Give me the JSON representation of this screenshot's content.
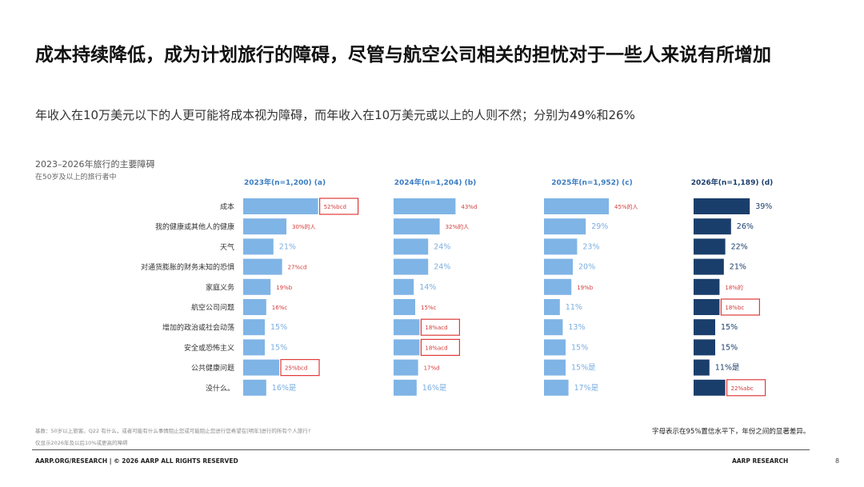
{
  "page": {
    "title": "成本持续降低，成为计划旅行的障碍，尽管与航空公司相关的担忧对于一些人来说有所增加",
    "subtitle": "年收入在10万美元以下的人更可能将成本视为障碍，而年收入在10万美元或以上的人则不然；分别为49%和26%",
    "chart_title": "2023–2026年旅行的主要障碍",
    "chart_subtitle": "在50岁及以上的旅行者中",
    "footnote_base": "基数：50岁以上旅客。Q22 有什么，或者可能有什么事情阻止您或可能阻止您进行您希望在[明年]进行的所有个人旅行?",
    "footnote_2": "仅显示2026年及以后10%或更高的障碍",
    "significance_note": "字母表示在95%置信水平下，年份之间的显著差异。",
    "footer_left": "AARP.ORG/RESEARCH | © 2026 AARP ALL RIGHTS RESERVED",
    "footer_right": "AARP RESEARCH",
    "page_number": "8"
  },
  "chart_data": {
    "type": "bar",
    "orientation": "horizontal",
    "categories": [
      "成本",
      "我的健康或其他人的健康",
      "天气",
      "对通货膨胀的财务未知的恐惧",
      "家庭义务",
      "航空公司问题",
      "增加的政治或社会动荡",
      "安全或恐怖主义",
      "公共健康问题",
      "没什么。"
    ],
    "series": [
      {
        "name": "2023年(n=1,200) (a)",
        "values": [
          52,
          30,
          21,
          27,
          19,
          16,
          15,
          15,
          25,
          16
        ],
        "labels": [
          "52%bcd",
          "30%的人",
          "21%",
          "27%cd",
          "19%b",
          "16%c",
          "15%",
          "15%",
          "25%bcd",
          "16%是"
        ],
        "highlighted": [
          true,
          false,
          false,
          false,
          false,
          false,
          false,
          false,
          true,
          false
        ]
      },
      {
        "name": "2024年(n=1,204) (b)",
        "values": [
          43,
          32,
          24,
          24,
          14,
          15,
          18,
          18,
          17,
          16
        ],
        "labels": [
          "43%d",
          "32%的人",
          "24%",
          "24%",
          "14%",
          "15%c",
          "18%acd",
          "18%acd",
          "17%d",
          "16%是"
        ],
        "highlighted": [
          false,
          false,
          false,
          false,
          false,
          false,
          true,
          true,
          false,
          false
        ]
      },
      {
        "name": "2025年(n=1,952) (c)",
        "values": [
          45,
          29,
          23,
          20,
          19,
          11,
          13,
          15,
          15,
          17
        ],
        "labels": [
          "45%的人",
          "29%",
          "23%",
          "20%",
          "19%b",
          "11%",
          "13%",
          "15%",
          "15%是",
          "17%是"
        ],
        "highlighted": [
          false,
          false,
          false,
          false,
          false,
          false,
          false,
          false,
          false,
          false
        ]
      },
      {
        "name": "2026年(n=1,189) (d)",
        "values": [
          39,
          26,
          22,
          21,
          18,
          18,
          15,
          15,
          11,
          22
        ],
        "labels": [
          "39%",
          "26%",
          "22%",
          "21%",
          "18%的",
          "18%bc",
          "15%",
          "15%",
          "11%是",
          "22%abc"
        ],
        "highlighted": [
          false,
          false,
          false,
          false,
          false,
          true,
          false,
          false,
          false,
          true
        ]
      }
    ],
    "colors": {
      "light_bar": "#7fb4e6",
      "dark_bar": "#1a3e6b",
      "light_header": "#3a7cc2",
      "dark_header": "#1a3e6b",
      "highlight_border": "#e03a3a",
      "sig_label": "#d43a3a",
      "plain_label_light": "#7aaee0",
      "plain_label_dark": "#1a3e6b",
      "category_label": "#333333"
    }
  }
}
